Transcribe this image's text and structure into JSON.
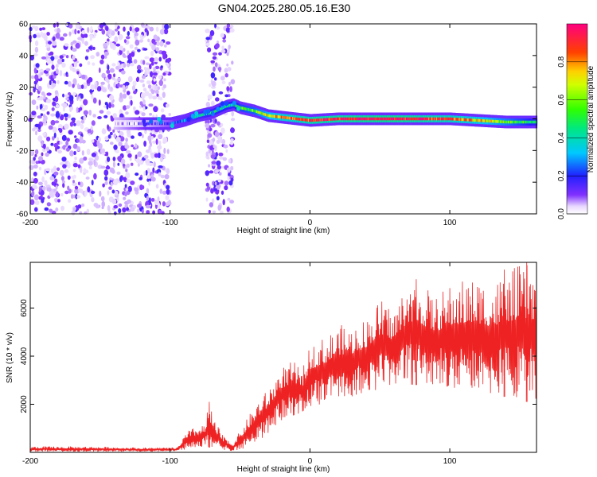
{
  "figure_title": "GN04.2025.280.05.16.E30",
  "colors": {
    "axes": "#000000",
    "snr_line": "#ee2222",
    "background": "#ffffff"
  },
  "chart_data": [
    {
      "type": "heatmap",
      "title": "GN04.2025.280.05.16.E30",
      "xlabel": "Height of straight line (km)",
      "ylabel": "Frequency (Hz)",
      "xlim": [
        -200,
        162
      ],
      "ylim": [
        -60,
        60
      ],
      "x_ticks": [
        -200,
        -100,
        0,
        100
      ],
      "y_ticks": [
        -60,
        -40,
        -20,
        0,
        20,
        40,
        60
      ],
      "colorbar": {
        "label": "Normalized spectral amplitude",
        "range": [
          0,
          1
        ],
        "ticks": [
          0.0,
          0.2,
          0.4,
          0.6,
          0.8
        ],
        "tick_labels": [
          "0.0",
          "0.2",
          "0.4",
          "0.6",
          "0.8"
        ],
        "colormap": "rainbow (white-violet-blue-cyan-green-yellow-red-magenta)"
      },
      "noise_regions": [
        {
          "x_range": [
            -200,
            -100
          ],
          "f_range": [
            -60,
            60
          ],
          "amplitude": "0.0-0.15"
        },
        {
          "x_range": [
            -74,
            -55
          ],
          "f_range": [
            -60,
            60
          ],
          "amplitude": "0.0-0.15"
        }
      ],
      "signal_track": {
        "x": [
          -140,
          -120,
          -100,
          -90,
          -80,
          -70,
          -60,
          -55,
          -50,
          -40,
          -30,
          -20,
          -10,
          0,
          20,
          40,
          60,
          80,
          100,
          120,
          140,
          162
        ],
        "frequency": [
          -3,
          -3,
          -3,
          -1,
          2,
          4,
          8,
          9,
          7,
          5,
          2,
          1,
          0,
          -1,
          0,
          0,
          0,
          0,
          0,
          -1,
          -2,
          -2
        ],
        "amplitude": [
          0.05,
          0.1,
          0.2,
          0.3,
          0.35,
          0.4,
          0.45,
          0.4,
          0.5,
          0.55,
          0.7,
          0.8,
          0.85,
          0.9,
          0.92,
          0.95,
          0.95,
          0.9,
          0.85,
          0.75,
          0.6,
          0.4
        ]
      }
    },
    {
      "type": "line",
      "xlabel": "Height of straight line (km)",
      "ylabel": "SNR (10 * v/v)",
      "xlim": [
        -200,
        162
      ],
      "ylim": [
        0,
        7900
      ],
      "x_ticks": [
        -200,
        -100,
        0,
        100
      ],
      "y_ticks": [
        2000,
        4000,
        6000
      ],
      "series": [
        {
          "name": "SNR",
          "color": "#ee2222",
          "envelope": {
            "x": [
              -200,
              -160,
              -120,
              -95,
              -88,
              -80,
              -75,
              -72,
              -68,
              -62,
              -55,
              -50,
              -42,
              -36,
              -30,
              -25,
              -20,
              -12,
              -5,
              0,
              10,
              20,
              30,
              40,
              50,
              60,
              70,
              80,
              90,
              100,
              110,
              120,
              130,
              140,
              150,
              160
            ],
            "low": [
              30,
              30,
              30,
              40,
              100,
              200,
              250,
              200,
              150,
              80,
              40,
              100,
              300,
              500,
              800,
              1000,
              1300,
              1500,
              1700,
              1900,
              2000,
              2200,
              2300,
              2500,
              2600,
              2700,
              2800,
              2800,
              2800,
              2700,
              2600,
              2500,
              2400,
              2300,
              2200,
              2000
            ],
            "high": [
              250,
              250,
              200,
              200,
              900,
              1100,
              1200,
              2100,
              1300,
              700,
              400,
              900,
              1700,
              2300,
              2600,
              3200,
              3600,
              3800,
              3500,
              4500,
              4800,
              5300,
              5300,
              5600,
              6400,
              6000,
              7200,
              7000,
              6500,
              7000,
              7200,
              7300,
              7100,
              7500,
              7800,
              7900
            ]
          },
          "peaks": [
            {
              "x": -72,
              "y": 2100
            },
            {
              "x": 76,
              "y": 7200
            },
            {
              "x": 139,
              "y": 7600
            },
            {
              "x": 155,
              "y": 7900
            }
          ]
        }
      ]
    }
  ]
}
